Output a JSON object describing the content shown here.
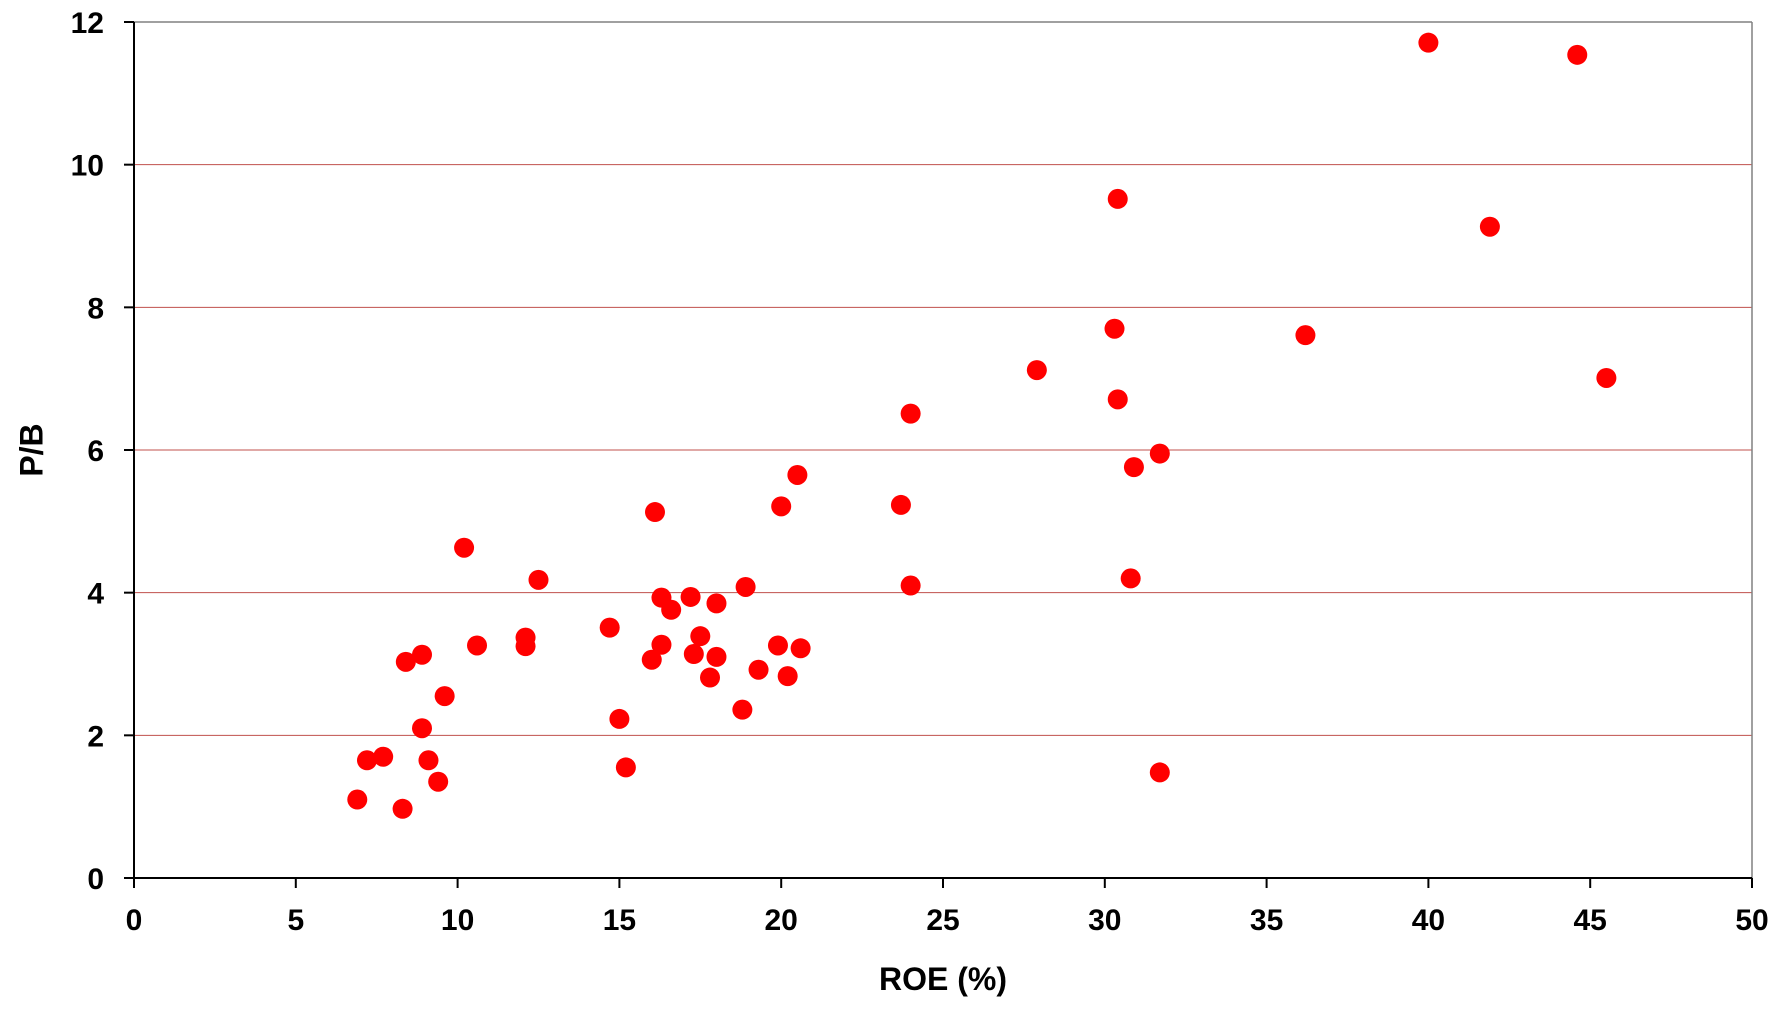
{
  "chart_data": {
    "type": "scatter",
    "title": "",
    "xlabel": "ROE (%)",
    "ylabel": "P/B",
    "xlim": [
      0,
      50
    ],
    "ylim": [
      0,
      12
    ],
    "x_ticks": [
      0,
      5,
      10,
      15,
      20,
      25,
      30,
      35,
      40,
      45,
      50
    ],
    "y_ticks": [
      0,
      2,
      4,
      6,
      8,
      10,
      12
    ],
    "grid": {
      "horizontal": true,
      "vertical": false,
      "color": "#c0504d"
    },
    "marker_color": "#ff0000",
    "legend": "none",
    "points": [
      {
        "x": 6.9,
        "y": 1.1
      },
      {
        "x": 7.2,
        "y": 1.65
      },
      {
        "x": 7.7,
        "y": 1.7
      },
      {
        "x": 8.3,
        "y": 0.97
      },
      {
        "x": 8.4,
        "y": 3.03
      },
      {
        "x": 8.9,
        "y": 2.1
      },
      {
        "x": 8.9,
        "y": 3.13
      },
      {
        "x": 9.1,
        "y": 1.65
      },
      {
        "x": 9.4,
        "y": 1.35
      },
      {
        "x": 9.6,
        "y": 2.55
      },
      {
        "x": 10.2,
        "y": 4.63
      },
      {
        "x": 10.6,
        "y": 3.26
      },
      {
        "x": 12.1,
        "y": 3.37
      },
      {
        "x": 12.1,
        "y": 3.25
      },
      {
        "x": 12.5,
        "y": 4.18
      },
      {
        "x": 14.7,
        "y": 3.51
      },
      {
        "x": 15.0,
        "y": 2.23
      },
      {
        "x": 15.2,
        "y": 1.55
      },
      {
        "x": 16.0,
        "y": 3.06
      },
      {
        "x": 16.1,
        "y": 5.13
      },
      {
        "x": 16.3,
        "y": 3.93
      },
      {
        "x": 16.3,
        "y": 3.27
      },
      {
        "x": 16.6,
        "y": 3.76
      },
      {
        "x": 17.2,
        "y": 3.94
      },
      {
        "x": 17.3,
        "y": 3.14
      },
      {
        "x": 17.5,
        "y": 3.39
      },
      {
        "x": 17.8,
        "y": 2.81
      },
      {
        "x": 18.0,
        "y": 3.85
      },
      {
        "x": 18.0,
        "y": 3.1
      },
      {
        "x": 18.8,
        "y": 2.36
      },
      {
        "x": 18.9,
        "y": 4.08
      },
      {
        "x": 19.3,
        "y": 2.92
      },
      {
        "x": 19.9,
        "y": 3.26
      },
      {
        "x": 20.0,
        "y": 5.21
      },
      {
        "x": 20.2,
        "y": 2.83
      },
      {
        "x": 20.5,
        "y": 5.65
      },
      {
        "x": 20.6,
        "y": 3.22
      },
      {
        "x": 23.7,
        "y": 5.23
      },
      {
        "x": 24.0,
        "y": 6.51
      },
      {
        "x": 24.0,
        "y": 4.1
      },
      {
        "x": 27.9,
        "y": 7.12
      },
      {
        "x": 30.3,
        "y": 7.7
      },
      {
        "x": 30.4,
        "y": 9.52
      },
      {
        "x": 30.4,
        "y": 6.71
      },
      {
        "x": 30.8,
        "y": 4.2
      },
      {
        "x": 30.9,
        "y": 5.76
      },
      {
        "x": 31.7,
        "y": 5.95
      },
      {
        "x": 31.7,
        "y": 1.48
      },
      {
        "x": 36.2,
        "y": 7.61
      },
      {
        "x": 40.0,
        "y": 11.71
      },
      {
        "x": 41.9,
        "y": 9.13
      },
      {
        "x": 44.6,
        "y": 11.54
      },
      {
        "x": 45.5,
        "y": 7.01
      }
    ]
  }
}
